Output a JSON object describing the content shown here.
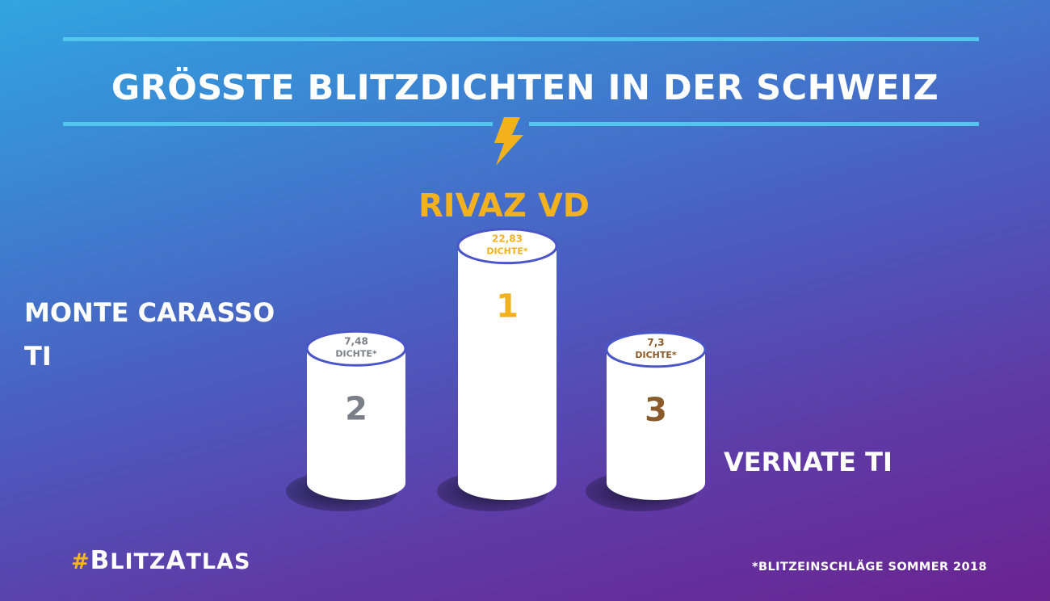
{
  "title": "GRÖSSTE BLITZDICHTEN IN DER SCHWEIZ",
  "icon": "lightning-bolt-icon",
  "colors": {
    "gold": "#f3b21d",
    "silver": "#7a7f88",
    "bronze": "#8a5a2a",
    "ring": "#4a56c8",
    "rule": "#52c6ee"
  },
  "chart_data": {
    "type": "bar",
    "unit_label": "DICHTE*",
    "categories": [
      "MONTE CARASSO TI",
      "RIVAZ VD",
      "VERNATE TI"
    ],
    "values": [
      7.48,
      22.83,
      7.3
    ],
    "value_labels": [
      "7,48",
      "22,83",
      "7,3"
    ],
    "ranks": [
      "2",
      "1",
      "3"
    ],
    "label_lines": [
      [
        "MONTE CARASSO",
        "TI"
      ],
      [
        "RIVAZ VD"
      ],
      [
        "VERNATE TI"
      ]
    ]
  },
  "hashtag": {
    "hash": "#",
    "b": "B",
    "litz": "LITZ",
    "a": "A",
    "tlas": "TLAS"
  },
  "footnote": "*BLITZEINSCHLÄGE SOMMER 2018"
}
